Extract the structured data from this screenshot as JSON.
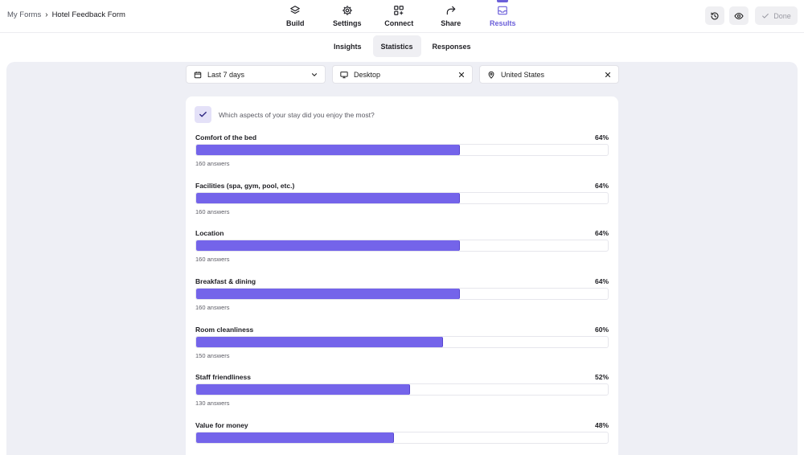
{
  "breadcrumb": {
    "root": "My Forms",
    "separator": "›",
    "current": "Hotel Feedback Form"
  },
  "nav": [
    {
      "label": "Build",
      "icon": "layers-icon",
      "active": false
    },
    {
      "label": "Settings",
      "icon": "gear-icon",
      "active": false
    },
    {
      "label": "Connect",
      "icon": "connect-icon",
      "active": false
    },
    {
      "label": "Share",
      "icon": "share-arrow-icon",
      "active": false
    },
    {
      "label": "Results",
      "icon": "inbox-icon",
      "active": true
    }
  ],
  "actions": {
    "history_icon": "history-icon",
    "preview_icon": "eye-icon",
    "done_label": "Done"
  },
  "subtabs": [
    {
      "label": "Insights",
      "active": false
    },
    {
      "label": "Statistics",
      "active": true
    },
    {
      "label": "Responses",
      "active": false
    }
  ],
  "filters": {
    "date": {
      "value": "Last 7 days",
      "icon": "calendar-icon"
    },
    "device": {
      "value": "Desktop",
      "icon": "monitor-icon"
    },
    "country": {
      "value": "United States",
      "icon": "location-pin-icon"
    }
  },
  "question": {
    "text": "Which aspects of your stay did you enjoy the most?"
  },
  "options": [
    {
      "label": "Comfort of the bed",
      "percent_label": "64%",
      "percent": 64,
      "count_label": "160 answers"
    },
    {
      "label": "Facilities (spa, gym, pool, etc.)",
      "percent_label": "64%",
      "percent": 64,
      "count_label": "160 answers"
    },
    {
      "label": "Location",
      "percent_label": "64%",
      "percent": 64,
      "count_label": "160 answers"
    },
    {
      "label": "Breakfast & dining",
      "percent_label": "64%",
      "percent": 64,
      "count_label": "160 answers"
    },
    {
      "label": "Room cleanliness",
      "percent_label": "60%",
      "percent": 60,
      "count_label": "150 answers"
    },
    {
      "label": "Staff friendliness",
      "percent_label": "52%",
      "percent": 52,
      "count_label": "130 answers"
    },
    {
      "label": "Value for money",
      "percent_label": "48%",
      "percent": 48,
      "count_label": ""
    }
  ],
  "colors": {
    "accent": "#6b5fd9",
    "bar_fill": "#7464ea",
    "panel_bg": "#eeeff5"
  }
}
